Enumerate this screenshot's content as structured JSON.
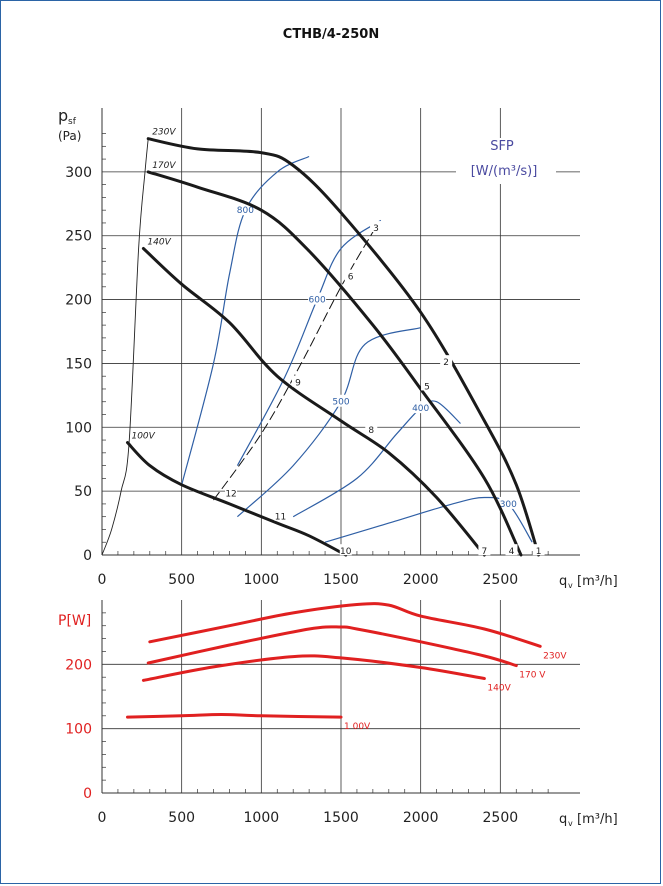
{
  "title": "CTHB/4-250N",
  "legend": {
    "line1": "SFP",
    "line2": "[W/(m³/s)]",
    "color": "#4a4aa0"
  },
  "colors": {
    "fan_curve": "#1a1a1a",
    "sfp": "#2f5fa5",
    "power": "#e02020",
    "grid": "#333333"
  },
  "chart_data": [
    {
      "type": "line",
      "title": "CTHB/4-250N",
      "ylabel_main": "p",
      "ylabel_sub": "sf",
      "ylabel_unit": "(Pa)",
      "xlabel_main": "q",
      "xlabel_sub": "v",
      "xlabel_unit": "[m³/h]",
      "xlim": [
        0,
        3000
      ],
      "ylim": [
        0,
        350
      ],
      "xticks": [
        0,
        500,
        1000,
        1500,
        2000,
        2500
      ],
      "xtick_labels": [
        "0",
        "500",
        "1000",
        "1500",
        "2000",
        "2500"
      ],
      "yticks": [
        0,
        50,
        100,
        150,
        200,
        250,
        300
      ],
      "ytick_labels": [
        "0",
        "50",
        "100",
        "150",
        "200",
        "250",
        "300"
      ],
      "grid": true,
      "fan_curves": [
        {
          "name": "230V",
          "x": [
            290,
            600,
            1000,
            1200,
            1500,
            2000,
            2400,
            2600,
            2740
          ],
          "y": [
            326,
            318,
            315,
            305,
            268,
            190,
            105,
            55,
            0
          ]
        },
        {
          "name": "170V",
          "x": [
            290,
            600,
            1000,
            1300,
            1700,
            2000,
            2400,
            2630
          ],
          "y": [
            300,
            288,
            270,
            238,
            180,
            130,
            60,
            0
          ]
        },
        {
          "name": "140V",
          "x": [
            260,
            500,
            800,
            1100,
            1500,
            1800,
            2100,
            2400
          ],
          "y": [
            240,
            212,
            182,
            140,
            105,
            80,
            45,
            0
          ]
        },
        {
          "name": "100V",
          "x": [
            160,
            300,
            500,
            800,
            1100,
            1300,
            1530
          ],
          "y": [
            88,
            70,
            55,
            40,
            25,
            15,
            0
          ]
        }
      ],
      "system_curve": {
        "x": [
          0,
          60,
          120,
          170,
          230,
          270,
          290
        ],
        "y": [
          0,
          20,
          50,
          88,
          240,
          300,
          326
        ]
      },
      "dashed_line": {
        "x": [
          700,
          1000,
          1250,
          1500,
          1710
        ],
        "y": [
          43,
          95,
          150,
          210,
          255
        ]
      },
      "sfp_curves": [
        {
          "name": "800",
          "x": [
            500,
            700,
            800,
            900,
            1100,
            1300
          ],
          "y": [
            55,
            150,
            220,
            270,
            300,
            312
          ]
        },
        {
          "name": "600",
          "x": [
            850,
            1150,
            1350,
            1500,
            1750
          ],
          "y": [
            70,
            140,
            200,
            240,
            262
          ]
        },
        {
          "name": "500",
          "x": [
            850,
            1200,
            1500,
            1650,
            2000
          ],
          "y": [
            30,
            70,
            120,
            165,
            178
          ]
        },
        {
          "name": "400",
          "x": [
            1200,
            1600,
            1850,
            2000,
            2100,
            2250
          ],
          "y": [
            30,
            60,
            95,
            115,
            120,
            103
          ]
        },
        {
          "name": "300",
          "x": [
            1400,
            1800,
            2200,
            2400,
            2550,
            2700
          ],
          "y": [
            10,
            25,
            40,
            45,
            40,
            10
          ]
        }
      ],
      "point_labels": [
        {
          "label": "1",
          "x": 2740,
          "y": 3
        },
        {
          "label": "2",
          "x": 2160,
          "y": 151
        },
        {
          "label": "3",
          "x": 1720,
          "y": 256
        },
        {
          "label": "4",
          "x": 2570,
          "y": 3
        },
        {
          "label": "5",
          "x": 2040,
          "y": 132
        },
        {
          "label": "6",
          "x": 1560,
          "y": 218
        },
        {
          "label": "7",
          "x": 2400,
          "y": 3
        },
        {
          "label": "8",
          "x": 1690,
          "y": 98
        },
        {
          "label": "9",
          "x": 1230,
          "y": 135
        },
        {
          "label": "10",
          "x": 1530,
          "y": 3
        },
        {
          "label": "11",
          "x": 1120,
          "y": 30
        },
        {
          "label": "12",
          "x": 810,
          "y": 48
        }
      ]
    },
    {
      "type": "line",
      "ylabel": "P[W]",
      "xlabel_main": "q",
      "xlabel_sub": "v",
      "xlabel_unit": "[m³/h]",
      "xlim": [
        0,
        3000
      ],
      "ylim": [
        0,
        300
      ],
      "xticks": [
        0,
        500,
        1000,
        1500,
        2000,
        2500
      ],
      "xtick_labels": [
        "0",
        "500",
        "1000",
        "1500",
        "2000",
        "2500"
      ],
      "yticks": [
        0,
        100,
        200
      ],
      "ytick_labels": [
        "0",
        "100",
        "200"
      ],
      "grid": true,
      "series": [
        {
          "name": "230V",
          "x": [
            300,
            800,
            1200,
            1600,
            1800,
            2000,
            2400,
            2750
          ],
          "y": [
            235,
            260,
            280,
            293,
            292,
            275,
            255,
            228
          ]
        },
        {
          "name": "170 V",
          "x": [
            290,
            800,
            1300,
            1500,
            1600,
            2000,
            2400,
            2600
          ],
          "y": [
            202,
            230,
            255,
            258,
            255,
            235,
            213,
            198
          ]
        },
        {
          "name": "140V",
          "x": [
            260,
            700,
            1200,
            1500,
            2000,
            2400
          ],
          "y": [
            175,
            196,
            212,
            210,
            195,
            178
          ]
        },
        {
          "name": "1 00V",
          "x": [
            160,
            500,
            750,
            1000,
            1500
          ],
          "y": [
            118,
            120,
            122,
            120,
            118
          ]
        }
      ]
    }
  ]
}
